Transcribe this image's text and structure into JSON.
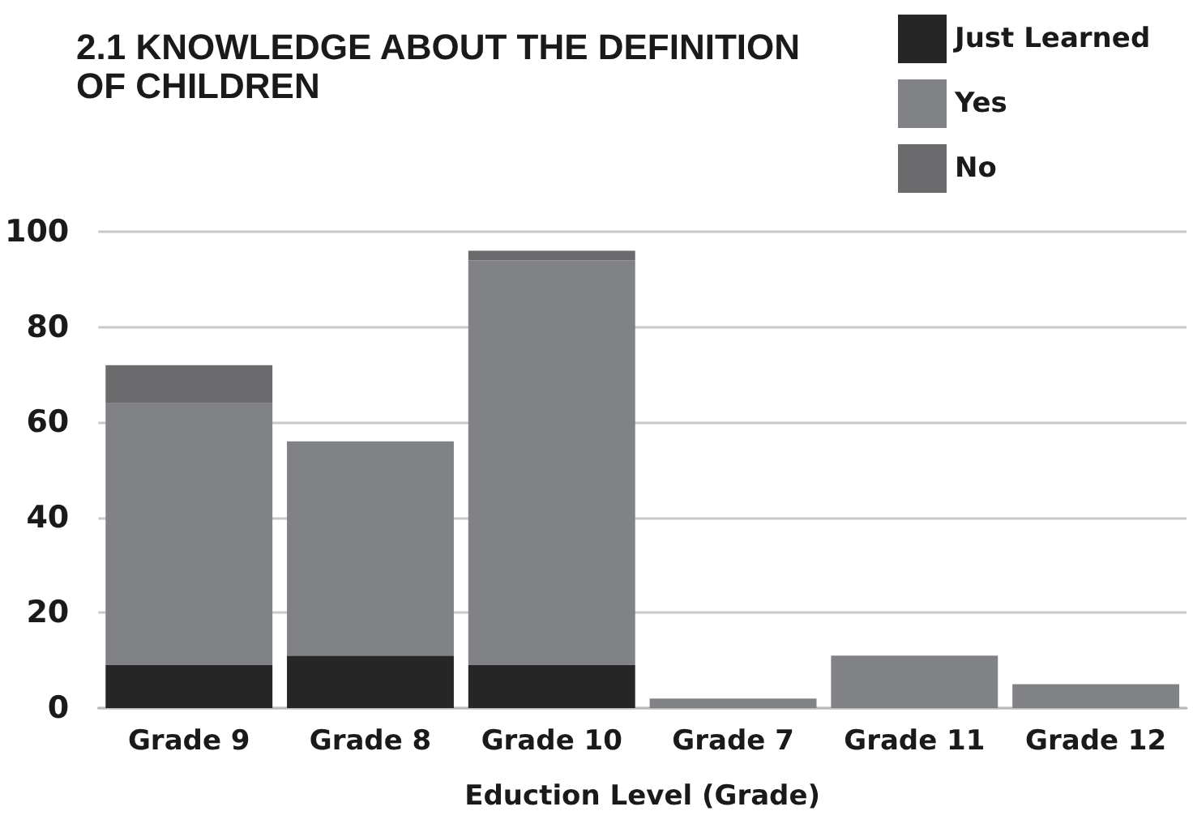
{
  "chart_data": {
    "type": "bar",
    "title": "2.1 KNOWLEDGE ABOUT THE DEFINITION OF CHILDREN",
    "xlabel": "Eduction Level (Grade)",
    "categories": [
      "Grade 9",
      "Grade 8",
      "Grade 10",
      "Grade 7",
      "Grade 11",
      "Grade 12"
    ],
    "series": [
      {
        "name": "Just Learned",
        "color": "#262626",
        "values": [
          9,
          11,
          9,
          null,
          null,
          null
        ]
      },
      {
        "name": "Yes",
        "color": "#818285",
        "values": [
          55,
          45,
          85,
          2,
          11,
          5
        ]
      },
      {
        "name": "No",
        "color": "#6b6b6d",
        "values": [
          8,
          null,
          2,
          null,
          null,
          null
        ]
      }
    ],
    "stacked": true,
    "ylim": [
      0,
      100
    ],
    "yticks": [
      0,
      20,
      40,
      60,
      80,
      100
    ],
    "grid": "y",
    "legend": "top right"
  }
}
